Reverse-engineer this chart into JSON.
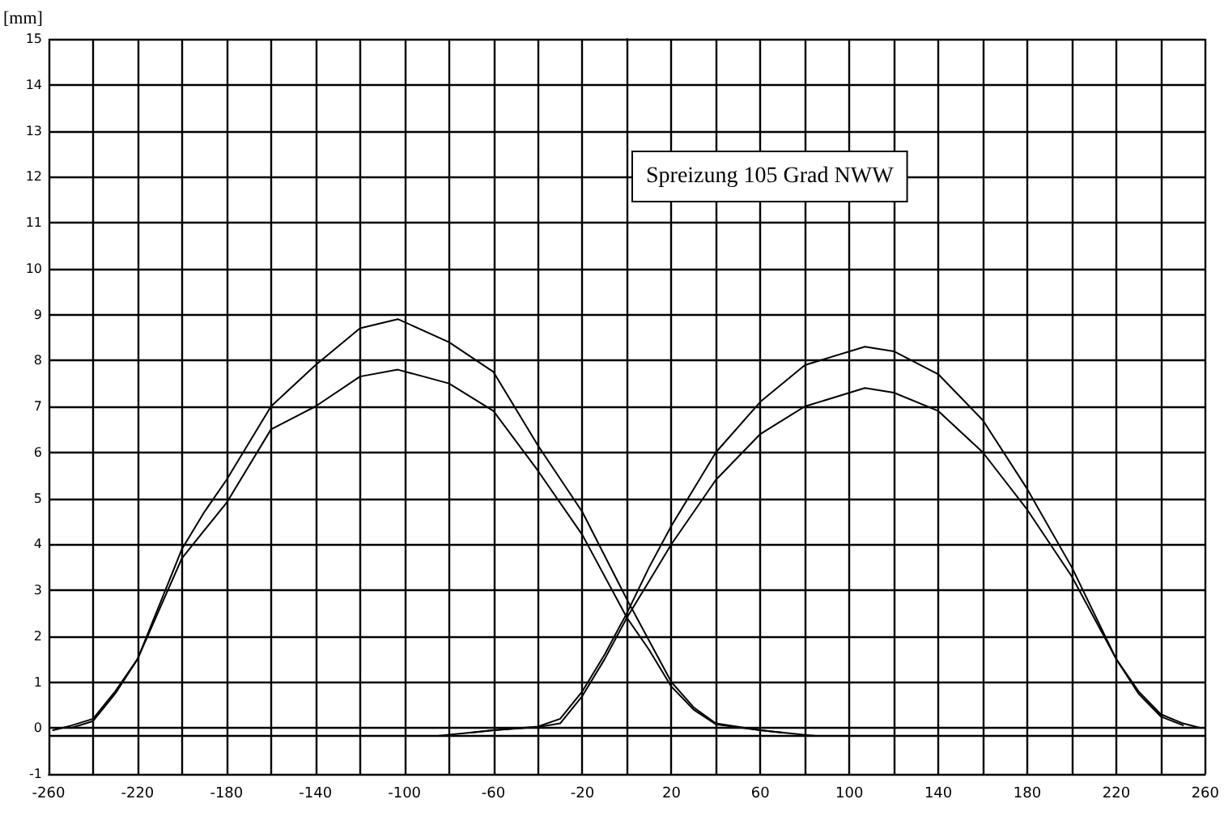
{
  "chart_data": {
    "type": "line",
    "ylabel": "[mm]",
    "annotations": [
      "Spreizung 105 Grad NWW"
    ],
    "xlim": [
      -260,
      260
    ],
    "xticks": [
      -260,
      {
        "value": -240,
        "label": null
      },
      -220,
      {
        "value": -200,
        "label": null
      },
      -180,
      {
        "value": -160,
        "label": null
      },
      -140,
      {
        "value": -120,
        "label": null
      },
      -100,
      {
        "value": -80,
        "label": null
      },
      -60,
      {
        "value": -40,
        "label": null
      },
      -20,
      {
        "value": 0,
        "label": null
      },
      20,
      {
        "value": 40,
        "label": null
      },
      60,
      {
        "value": 80,
        "label": null
      },
      100,
      {
        "value": 120,
        "label": null
      },
      140,
      {
        "value": 160,
        "label": null
      },
      180,
      {
        "value": 200,
        "label": null
      },
      220,
      {
        "value": 240,
        "label": null
      },
      260
    ],
    "ylim": [
      -1,
      15
    ],
    "yticks": [
      -1,
      0,
      1,
      2,
      3,
      4,
      5,
      6,
      7,
      8,
      9,
      10,
      11,
      12,
      13,
      14,
      15
    ],
    "grid": true,
    "marker": "none",
    "line_style": "solid",
    "ref_lines": [
      {
        "axis": "y",
        "value": -0.17,
        "color": "#000000"
      }
    ],
    "series": [
      {
        "color": "#000000",
        "x": [
          -258,
          -250,
          -240,
          -230,
          -220,
          -210,
          -200,
          -190,
          -180,
          -160,
          -140,
          -120,
          -103,
          -80,
          -60,
          -40,
          -20,
          0,
          10,
          20,
          30,
          40,
          60,
          80,
          85
        ],
        "values": [
          -0.05,
          0.05,
          0.2,
          0.8,
          1.5,
          2.7,
          3.9,
          4.7,
          5.4,
          7.0,
          7.9,
          8.7,
          8.9,
          8.4,
          7.75,
          6.15,
          4.7,
          2.8,
          1.9,
          1.0,
          0.45,
          0.1,
          -0.05,
          -0.15,
          -0.17
        ]
      },
      {
        "color": "#000000",
        "x": [
          -250,
          -240,
          -230,
          -220,
          -210,
          -200,
          -190,
          -180,
          -160,
          -140,
          -120,
          -103,
          -80,
          -60,
          -40,
          -20,
          0,
          10,
          20,
          30,
          40,
          60,
          70
        ],
        "values": [
          0.0,
          0.15,
          0.75,
          1.5,
          2.6,
          3.7,
          4.3,
          4.9,
          6.5,
          7.0,
          7.65,
          7.8,
          7.5,
          6.9,
          5.6,
          4.2,
          2.4,
          1.7,
          0.9,
          0.4,
          0.08,
          -0.05,
          -0.1
        ]
      },
      {
        "color": "#000000",
        "x": [
          -85,
          -60,
          -40,
          -30,
          -20,
          -10,
          0,
          10,
          20,
          40,
          60,
          80,
          107,
          120,
          140,
          160,
          180,
          200,
          220,
          230,
          240,
          250,
          258
        ],
        "values": [
          -0.17,
          -0.05,
          0.03,
          0.2,
          0.8,
          1.6,
          2.5,
          3.5,
          4.4,
          6.0,
          7.1,
          7.9,
          8.3,
          8.2,
          7.7,
          6.7,
          5.2,
          3.5,
          1.5,
          0.8,
          0.3,
          0.1,
          0.0
        ]
      },
      {
        "color": "#000000",
        "x": [
          -70,
          -60,
          -40,
          -30,
          -20,
          -10,
          0,
          10,
          20,
          40,
          60,
          80,
          107,
          120,
          140,
          160,
          180,
          200,
          220,
          230,
          240,
          250
        ],
        "values": [
          -0.1,
          -0.05,
          0.02,
          0.1,
          0.7,
          1.5,
          2.4,
          3.2,
          4.0,
          5.4,
          6.4,
          7.0,
          7.4,
          7.3,
          6.9,
          6.0,
          4.75,
          3.3,
          1.5,
          0.75,
          0.25,
          0.06
        ]
      }
    ]
  }
}
